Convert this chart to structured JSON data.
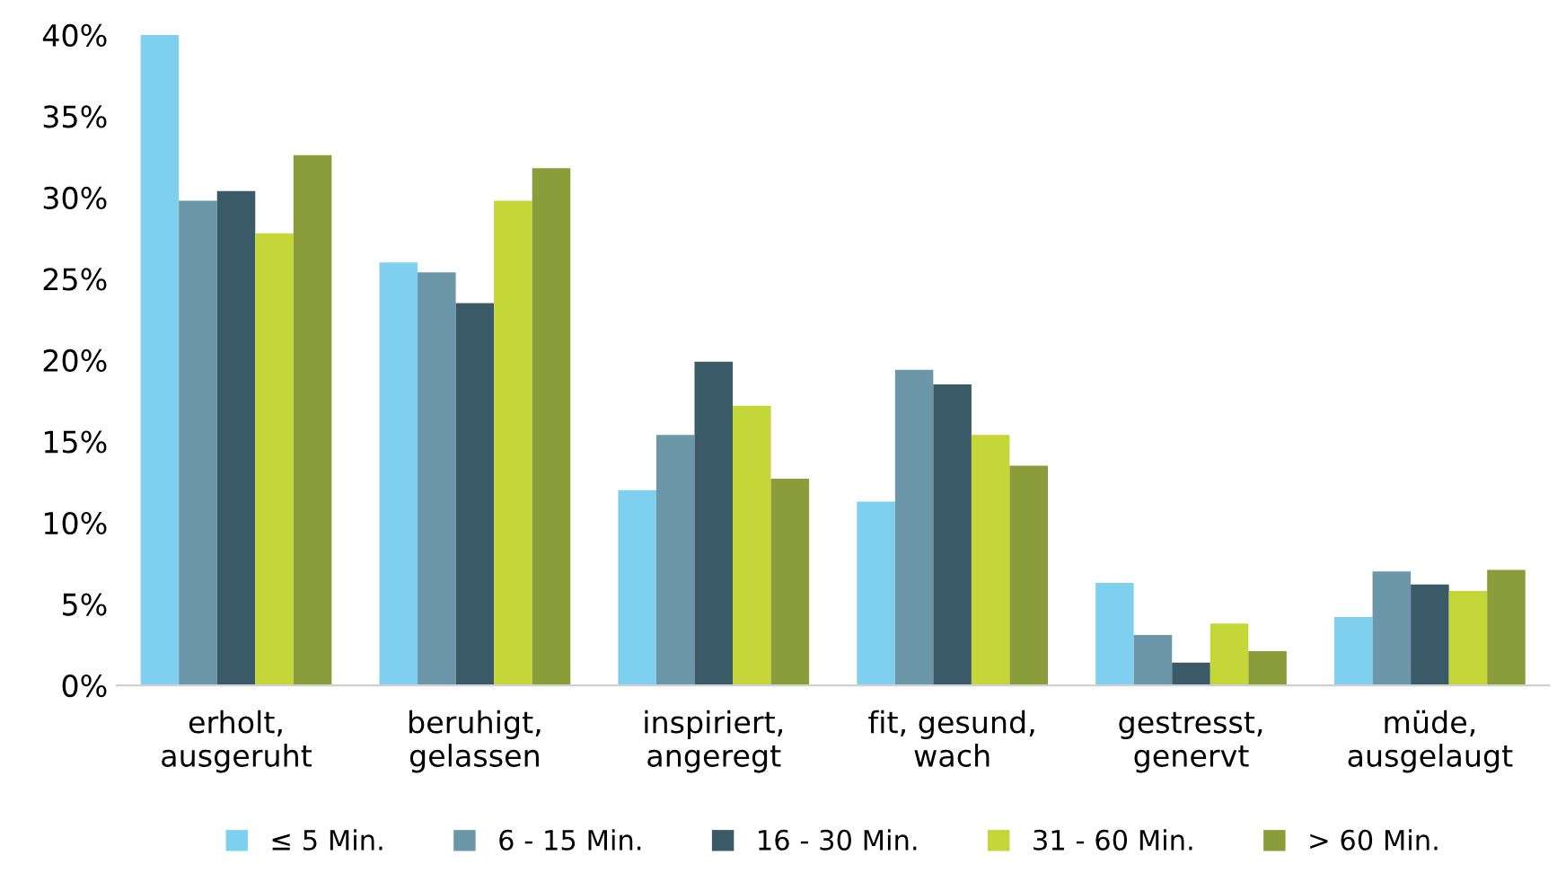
{
  "chart_data": {
    "type": "bar",
    "categories": [
      "erholt,\nausgeruht",
      "beruhigt,\ngelassen",
      "inspiriert,\nangeregt",
      "fit, gesund,\nwach",
      "gestresst,\ngenervt",
      "müde,\nausgelaugt"
    ],
    "series": [
      {
        "name": "≤ 5 Min.",
        "color": "#7fd0ee",
        "values": [
          40,
          26.0,
          12.0,
          11.3,
          6.3,
          4.2
        ]
      },
      {
        "name": "6 - 15 Min.",
        "color": "#6b97a8",
        "values": [
          29.8,
          25.4,
          15.4,
          19.4,
          3.1,
          7.0
        ]
      },
      {
        "name": "16 - 30 Min.",
        "color": "#3a5a68",
        "values": [
          30.4,
          23.5,
          19.9,
          18.5,
          1.4,
          6.2
        ]
      },
      {
        "name": "31 - 60 Min.",
        "color": "#c5d639",
        "values": [
          27.8,
          29.8,
          17.2,
          15.4,
          3.8,
          5.8
        ]
      },
      {
        "name": "> 60 Min.",
        "color": "#8a9d3a",
        "values": [
          32.6,
          31.8,
          12.7,
          13.5,
          2.1,
          7.1
        ]
      }
    ],
    "ylim": [
      0,
      40
    ],
    "yticks": [
      {
        "value": 0,
        "label": "0%"
      },
      {
        "value": 5,
        "label": "5%"
      },
      {
        "value": 10,
        "label": "10%"
      },
      {
        "value": 15,
        "label": "15%"
      },
      {
        "value": 20,
        "label": "20%"
      },
      {
        "value": 25,
        "label": "25%"
      },
      {
        "value": 30,
        "label": "30%"
      },
      {
        "value": 35,
        "label": "35%"
      },
      {
        "value": 40,
        "label": "40%"
      }
    ],
    "grid": false,
    "legend": "bottom"
  }
}
